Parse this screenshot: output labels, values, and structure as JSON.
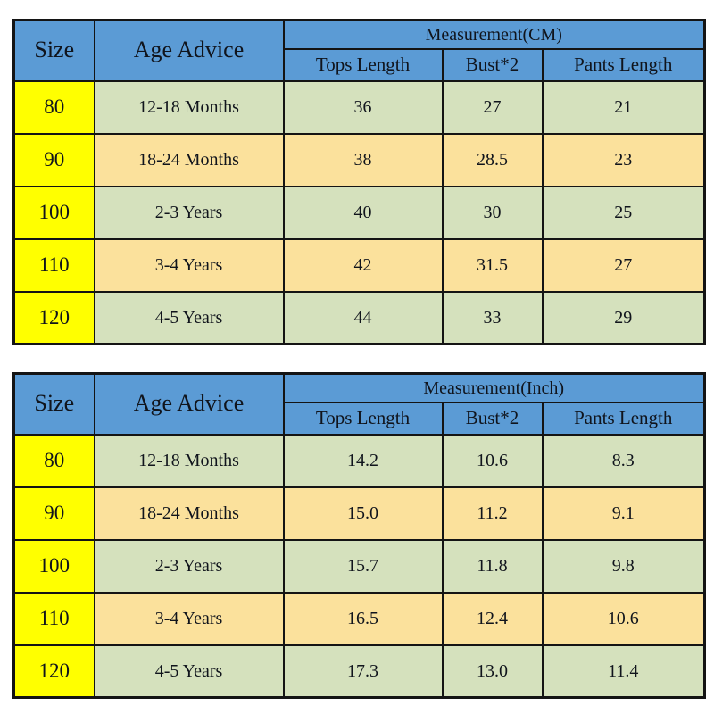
{
  "colors": {
    "header_blue": "#5b9bd5",
    "size_yellow": "#ffff00",
    "row_green": "#d5e1bd",
    "row_tan": "#fbe19c",
    "table_border": "#141414",
    "text_color": "#10141c"
  },
  "chart_data": [
    {
      "type": "table",
      "title": "Measurement(CM)",
      "header": {
        "size": "Size",
        "age": "Age Advice",
        "measurement": "Measurement(CM)",
        "sub": [
          "Tops Length",
          "Bust*2",
          "Pants Length"
        ]
      },
      "rows": [
        {
          "size": "80",
          "age": "12-18 Months",
          "tops": "36",
          "bust": "27",
          "pants": "21"
        },
        {
          "size": "90",
          "age": "18-24 Months",
          "tops": "38",
          "bust": "28.5",
          "pants": "23"
        },
        {
          "size": "100",
          "age": "2-3 Years",
          "tops": "40",
          "bust": "30",
          "pants": "25"
        },
        {
          "size": "110",
          "age": "3-4 Years",
          "tops": "42",
          "bust": "31.5",
          "pants": "27"
        },
        {
          "size": "120",
          "age": "4-5 Years",
          "tops": "44",
          "bust": "33",
          "pants": "29"
        }
      ]
    },
    {
      "type": "table",
      "title": "Measurement(Inch)",
      "header": {
        "size": "Size",
        "age": "Age Advice",
        "measurement": "Measurement(Inch)",
        "sub": [
          "Tops Length",
          "Bust*2",
          "Pants Length"
        ]
      },
      "rows": [
        {
          "size": "80",
          "age": "12-18 Months",
          "tops": "14.2",
          "bust": "10.6",
          "pants": "8.3"
        },
        {
          "size": "90",
          "age": "18-24 Months",
          "tops": "15.0",
          "bust": "11.2",
          "pants": "9.1"
        },
        {
          "size": "100",
          "age": "2-3 Years",
          "tops": "15.7",
          "bust": "11.8",
          "pants": "9.8"
        },
        {
          "size": "110",
          "age": "3-4 Years",
          "tops": "16.5",
          "bust": "12.4",
          "pants": "10.6"
        },
        {
          "size": "120",
          "age": "4-5 Years",
          "tops": "17.3",
          "bust": "13.0",
          "pants": "11.4"
        }
      ]
    }
  ]
}
